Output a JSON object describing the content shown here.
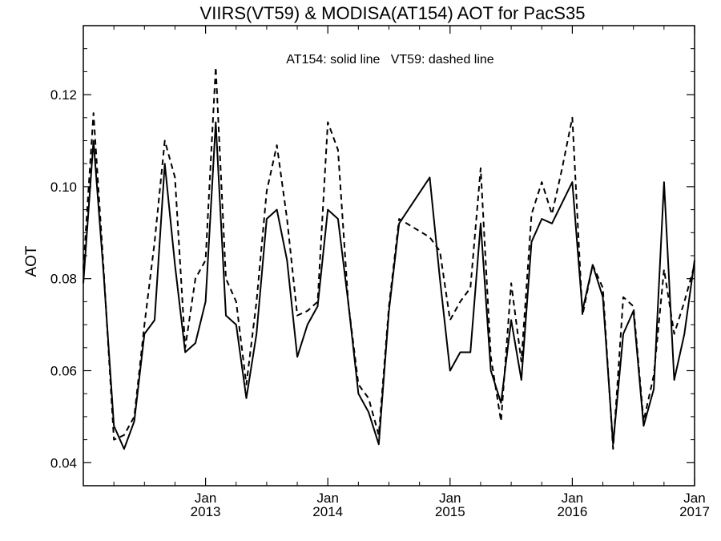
{
  "chart_data": {
    "type": "line",
    "title": "VIIRS(VT59) & MODISA(AT154)  AOT for PacS35",
    "annotation": "AT154: solid line   VT59: dashed line",
    "ylabel": "AOT",
    "xlabel": "",
    "xlim": [
      "2012-01-01",
      "2017-01-01"
    ],
    "ylim": [
      0.035,
      0.135
    ],
    "yticks": [
      0.04,
      0.06,
      0.08,
      0.1,
      0.12
    ],
    "ytick_labels": [
      "0.04",
      "0.06",
      "0.08",
      "0.10",
      "0.12"
    ],
    "xticks": [
      {
        "date": "2013-01-01",
        "line1": "Jan",
        "line2": "2013"
      },
      {
        "date": "2014-01-01",
        "line1": "Jan",
        "line2": "2014"
      },
      {
        "date": "2015-01-01",
        "line1": "Jan",
        "line2": "2015"
      },
      {
        "date": "2016-01-01",
        "line1": "Jan",
        "line2": "2016"
      },
      {
        "date": "2017-01-01",
        "line1": "Jan",
        "line2": "2017"
      }
    ],
    "grid": false,
    "series": [
      {
        "name": "AT154",
        "style": "solid",
        "color": "#000000",
        "points": [
          [
            "2012-01-01",
            0.079
          ],
          [
            "2012-02-01",
            0.11
          ],
          [
            "2012-03-01",
            0.081
          ],
          [
            "2012-04-01",
            0.048
          ],
          [
            "2012-05-01",
            0.043
          ],
          [
            "2012-06-01",
            0.049
          ],
          [
            "2012-07-01",
            0.068
          ],
          [
            "2012-08-01",
            0.071
          ],
          [
            "2012-09-01",
            0.105
          ],
          [
            "2012-10-01",
            0.083
          ],
          [
            "2012-11-01",
            0.064
          ],
          [
            "2012-12-01",
            0.066
          ],
          [
            "2013-01-01",
            0.075
          ],
          [
            "2013-02-01",
            0.114
          ],
          [
            "2013-03-01",
            0.072
          ],
          [
            "2013-04-01",
            0.07
          ],
          [
            "2013-05-01",
            0.054
          ],
          [
            "2013-06-01",
            0.068
          ],
          [
            "2013-07-01",
            0.093
          ],
          [
            "2013-08-01",
            0.095
          ],
          [
            "2013-09-01",
            0.084
          ],
          [
            "2013-10-01",
            0.063
          ],
          [
            "2013-11-01",
            0.07
          ],
          [
            "2013-12-01",
            0.074
          ],
          [
            "2014-01-01",
            0.095
          ],
          [
            "2014-02-01",
            0.093
          ],
          [
            "2014-03-01",
            0.075
          ],
          [
            "2014-04-01",
            0.055
          ],
          [
            "2014-05-01",
            0.051
          ],
          [
            "2014-06-01",
            0.044
          ],
          [
            "2014-07-01",
            0.073
          ],
          [
            "2014-08-01",
            0.092
          ],
          [
            "2014-11-01",
            0.102
          ],
          [
            "2014-12-01",
            0.08
          ],
          [
            "2015-01-01",
            0.06
          ],
          [
            "2015-02-01",
            0.064
          ],
          [
            "2015-03-01",
            0.064
          ],
          [
            "2015-04-01",
            0.092
          ],
          [
            "2015-05-01",
            0.06
          ],
          [
            "2015-06-01",
            0.053
          ],
          [
            "2015-07-01",
            0.071
          ],
          [
            "2015-08-01",
            0.058
          ],
          [
            "2015-09-01",
            0.088
          ],
          [
            "2015-10-01",
            0.093
          ],
          [
            "2015-11-01",
            0.092
          ],
          [
            "2016-01-01",
            0.101
          ],
          [
            "2016-02-01",
            0.073
          ],
          [
            "2016-03-01",
            0.083
          ],
          [
            "2016-04-01",
            0.076
          ],
          [
            "2016-05-01",
            0.044
          ],
          [
            "2016-06-01",
            0.068
          ],
          [
            "2016-07-01",
            0.073
          ],
          [
            "2016-08-01",
            0.048
          ],
          [
            "2016-09-01",
            0.056
          ],
          [
            "2016-10-01",
            0.101
          ],
          [
            "2016-11-01",
            0.058
          ],
          [
            "2016-12-01",
            0.068
          ],
          [
            "2017-01-01",
            0.084
          ]
        ]
      },
      {
        "name": "VT59",
        "style": "dashed",
        "color": "#000000",
        "points": [
          [
            "2012-01-01",
            0.082
          ],
          [
            "2012-02-01",
            0.116
          ],
          [
            "2012-03-01",
            0.082
          ],
          [
            "2012-04-01",
            0.045
          ],
          [
            "2012-05-01",
            0.046
          ],
          [
            "2012-06-01",
            0.05
          ],
          [
            "2012-07-01",
            0.07
          ],
          [
            "2012-08-01",
            0.088
          ],
          [
            "2012-09-01",
            0.11
          ],
          [
            "2012-10-01",
            0.102
          ],
          [
            "2012-11-01",
            0.065
          ],
          [
            "2012-12-01",
            0.08
          ],
          [
            "2013-01-01",
            0.084
          ],
          [
            "2013-02-01",
            0.126
          ],
          [
            "2013-03-01",
            0.08
          ],
          [
            "2013-04-01",
            0.075
          ],
          [
            "2013-05-01",
            0.057
          ],
          [
            "2013-06-01",
            0.075
          ],
          [
            "2013-07-01",
            0.099
          ],
          [
            "2013-08-01",
            0.109
          ],
          [
            "2013-09-01",
            0.093
          ],
          [
            "2013-10-01",
            0.072
          ],
          [
            "2013-11-01",
            0.073
          ],
          [
            "2013-12-01",
            0.075
          ],
          [
            "2014-01-01",
            0.114
          ],
          [
            "2014-02-01",
            0.108
          ],
          [
            "2014-03-01",
            0.075
          ],
          [
            "2014-04-01",
            0.057
          ],
          [
            "2014-05-01",
            0.054
          ],
          [
            "2014-06-01",
            0.046
          ],
          [
            "2014-07-01",
            0.074
          ],
          [
            "2014-08-01",
            0.093
          ],
          [
            "2014-11-01",
            0.089
          ],
          [
            "2014-12-01",
            0.086
          ],
          [
            "2015-01-01",
            0.071
          ],
          [
            "2015-02-01",
            0.075
          ],
          [
            "2015-03-01",
            0.078
          ],
          [
            "2015-04-01",
            0.104
          ],
          [
            "2015-05-01",
            0.063
          ],
          [
            "2015-06-01",
            0.049
          ],
          [
            "2015-07-01",
            0.079
          ],
          [
            "2015-08-01",
            0.062
          ],
          [
            "2015-09-01",
            0.094
          ],
          [
            "2015-10-01",
            0.101
          ],
          [
            "2015-11-01",
            0.094
          ],
          [
            "2015-12-01",
            0.104
          ],
          [
            "2016-01-01",
            0.115
          ],
          [
            "2016-02-01",
            0.072
          ],
          [
            "2016-03-01",
            0.083
          ],
          [
            "2016-04-01",
            0.078
          ],
          [
            "2016-05-01",
            0.043
          ],
          [
            "2016-06-01",
            0.076
          ],
          [
            "2016-07-01",
            0.074
          ],
          [
            "2016-08-01",
            0.049
          ],
          [
            "2016-09-01",
            0.059
          ],
          [
            "2016-10-01",
            0.082
          ],
          [
            "2016-11-01",
            0.068
          ],
          [
            "2016-12-01",
            0.075
          ],
          [
            "2017-01-01",
            0.083
          ]
        ]
      }
    ]
  }
}
